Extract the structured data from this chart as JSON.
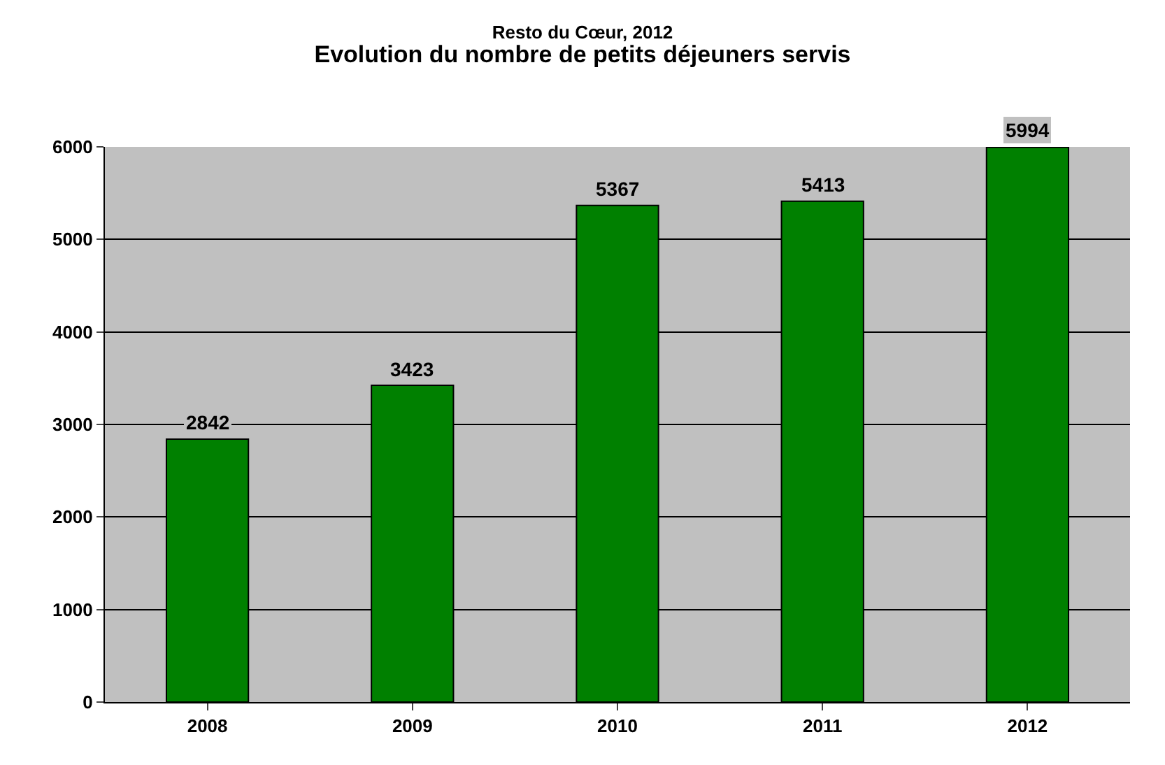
{
  "chart_data": {
    "type": "bar",
    "title": "Resto du Cœur, 2012",
    "subtitle": "Evolution du nombre de petits déjeuners servis",
    "categories": [
      "2008",
      "2009",
      "2010",
      "2011",
      "2012"
    ],
    "values": [
      2842,
      3423,
      5367,
      5413,
      5994
    ],
    "color": "#008000",
    "ylim": [
      0,
      6000
    ],
    "yticks": [
      0,
      1000,
      2000,
      3000,
      4000,
      5000,
      6000
    ],
    "grid": "y",
    "data_labels": true
  }
}
